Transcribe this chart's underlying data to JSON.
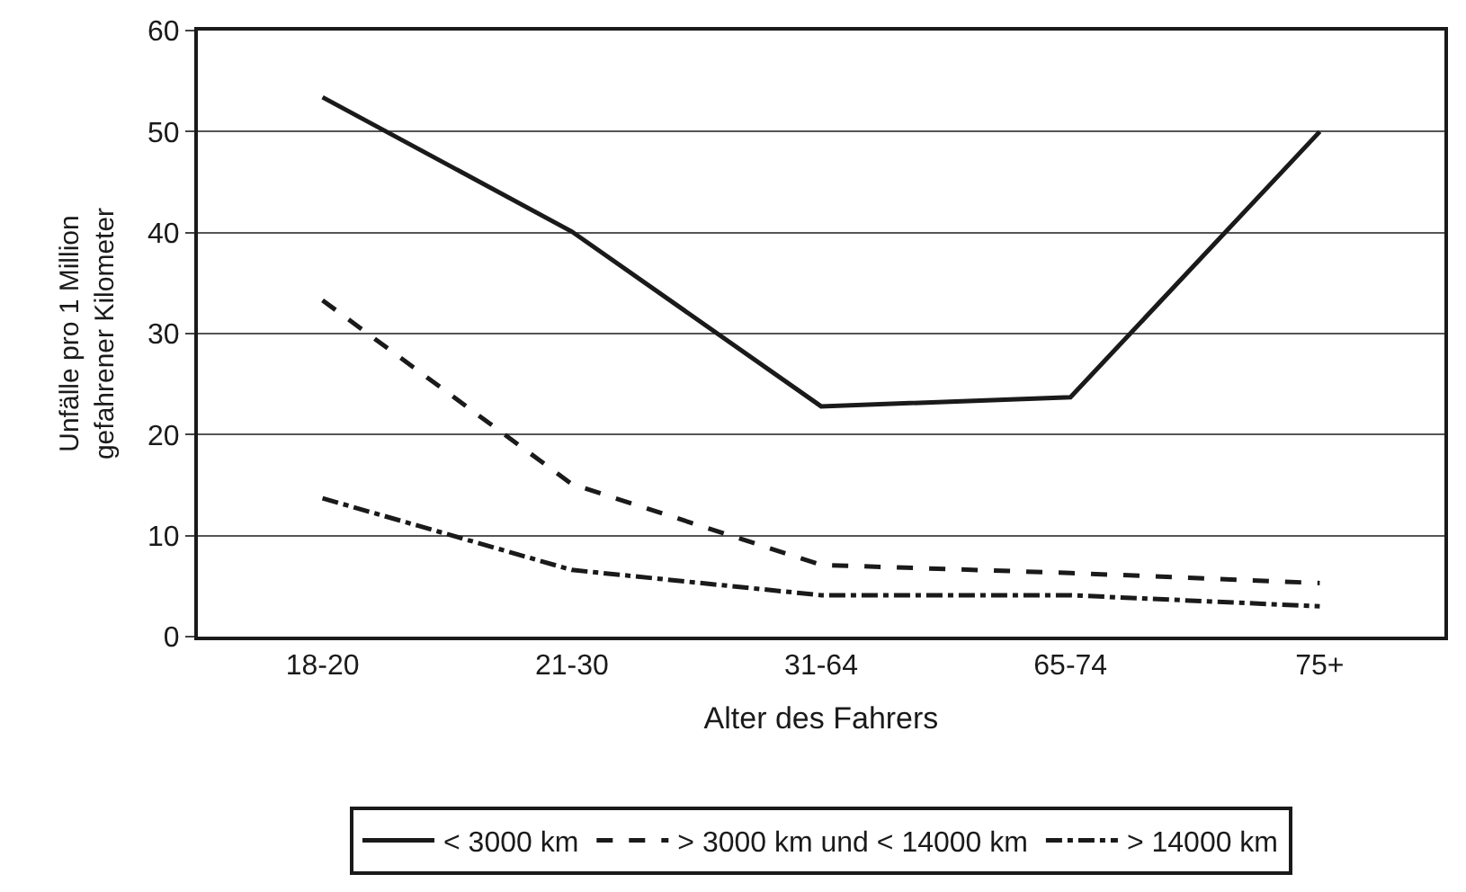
{
  "chart_data": {
    "type": "line",
    "xlabel": "Alter des Fahrers",
    "ylabel": "Unfälle pro 1 Million\ngefahrener Kilometer",
    "categories": [
      "18-20",
      "21-30",
      "31-64",
      "65-74",
      "75+"
    ],
    "series": [
      {
        "name": "< 3000 km",
        "color": "#1a1a1a",
        "line_style": "solid",
        "values": [
          53.4,
          40.1,
          22.8,
          23.7,
          50.0
        ]
      },
      {
        "name": "> 3000 km und < 14000 km",
        "color": "#1a1a1a",
        "line_style": "dashed",
        "values": [
          33.3,
          15.1,
          7.1,
          6.3,
          5.3
        ]
      },
      {
        "name": "> 14000 km",
        "color": "#1a1a1a",
        "line_style": "dashdot",
        "values": [
          13.7,
          6.6,
          4.1,
          4.1,
          3.0
        ]
      }
    ],
    "ylim": [
      0,
      60
    ],
    "yticks": [
      0,
      10,
      20,
      30,
      40,
      50,
      60
    ],
    "grid": "y",
    "legend": "bottom",
    "marker": "none"
  }
}
